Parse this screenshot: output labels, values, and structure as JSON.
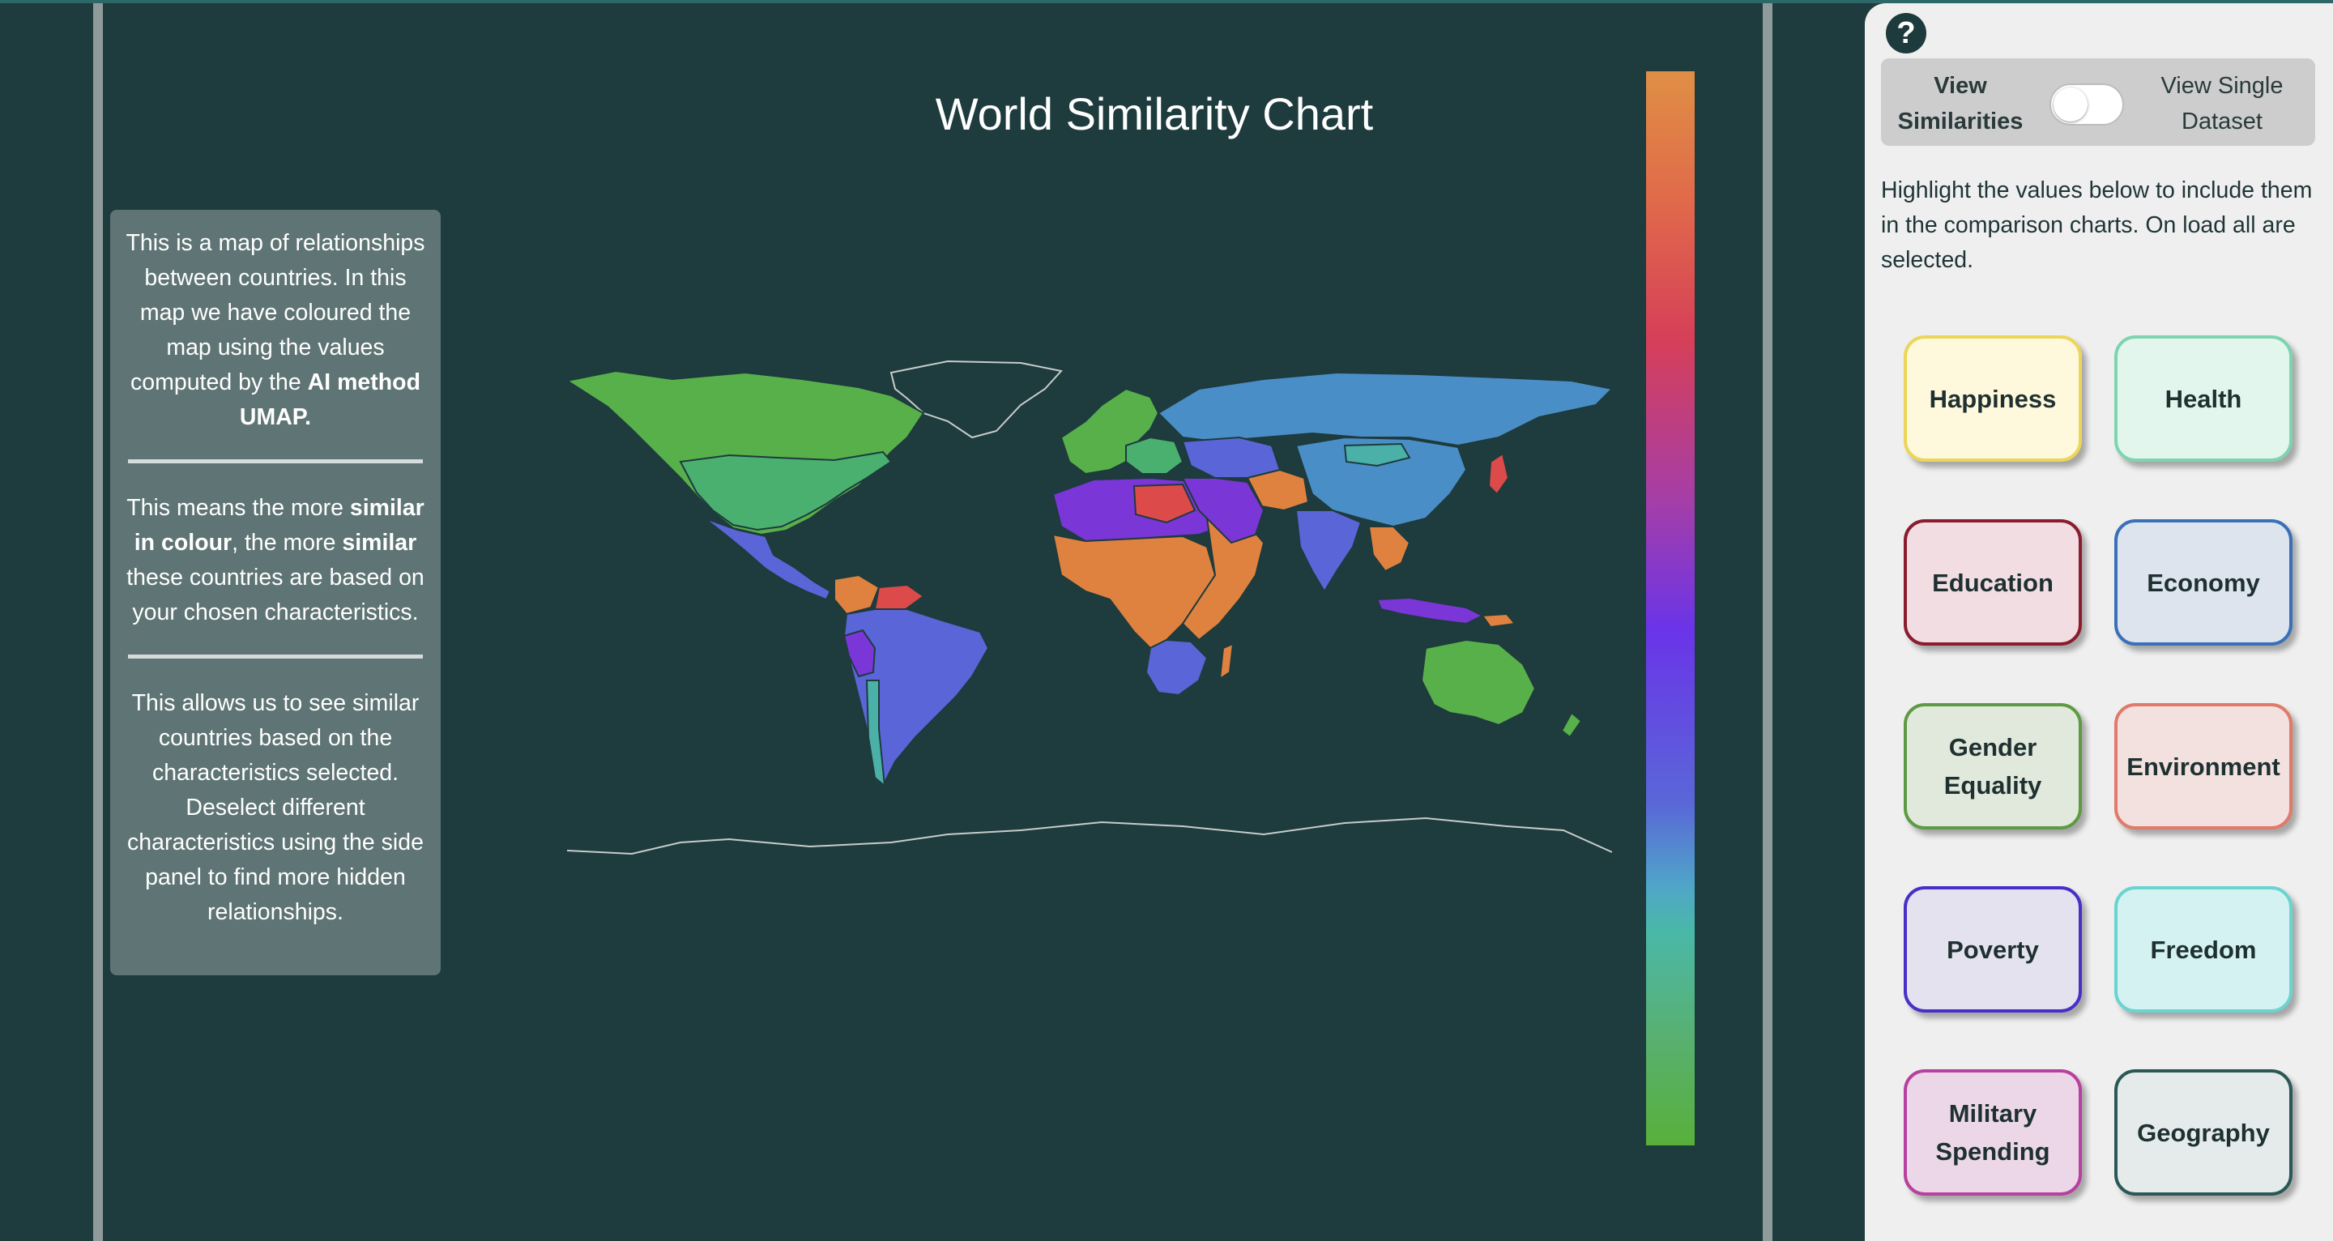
{
  "map": {
    "title": "World Similarity Chart",
    "colour_scale": {
      "stops": [
        "#e08f45",
        "#e06a4a",
        "#d63f58",
        "#a53ea8",
        "#6a34e8",
        "#5a66d8",
        "#4fa6c8",
        "#4ab8a8",
        "#58b070",
        "#58b03a"
      ]
    },
    "legend_colors": {
      "orange": "#e0823f",
      "red": "#dc4a4a",
      "purple": "#7a36d6",
      "blue": "#5a66d8",
      "sky": "#4a8ec8",
      "teal": "#4ab0a8",
      "green": "#58b04a",
      "outline": "#c8cccc"
    }
  },
  "info_panel": {
    "p1_text": "This is a map of relationships between countries. In this map we have coloured the map using the values computed by the ",
    "p1_bold": "AI method UMAP.",
    "p2_a": "This means the more ",
    "p2_b": "similar in colour",
    "p2_c": ", the more ",
    "p2_d": "similar",
    "p2_e": " these countries are based on your chosen characteristics.",
    "p3_text": "This allows us to see similar countries based on the characteristics selected. Deselect different characteristics using the side panel to find more hidden relationships."
  },
  "side_panel": {
    "help_icon": "question-circle-icon",
    "help_label": "?",
    "toggle": {
      "left_label": "View Similarities",
      "right_label": "View Single Dataset",
      "state": "View Similarities"
    },
    "instructions": "Highlight the values below to include them in the comparison charts. On load all are selected.",
    "categories": [
      {
        "label": "Happiness",
        "color": "#ecd65a"
      },
      {
        "label": "Health",
        "color": "#7fd4b0"
      },
      {
        "label": "Education",
        "color": "#8a1c2e"
      },
      {
        "label": "Economy",
        "color": "#3a70b8"
      },
      {
        "label": "Gender Equality",
        "color": "#5e9a44"
      },
      {
        "label": "Environment",
        "color": "#e07a6a"
      },
      {
        "label": "Poverty",
        "color": "#4a2ec8"
      },
      {
        "label": "Freedom",
        "color": "#6ad4d0"
      },
      {
        "label": "Military Spending",
        "color": "#b8409e"
      },
      {
        "label": "Geography",
        "color": "#2b5856"
      }
    ]
  }
}
